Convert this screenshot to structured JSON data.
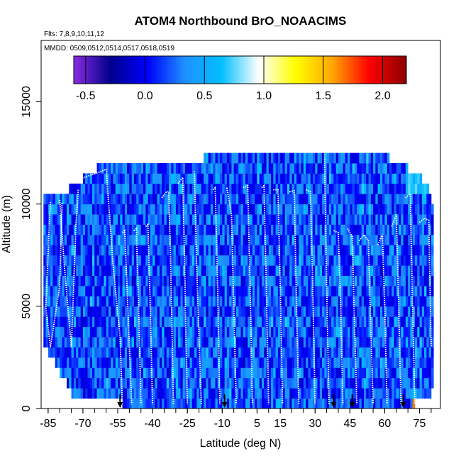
{
  "chart_data": {
    "type": "heatmap",
    "title": "ATOM4 Northbound BrO_NOAACIMS",
    "subtitle_flights": "Flts: 7,8,9,10,11,12",
    "subtitle_dates": "MMDD: 0509,0512,0514,0517,0518,0519",
    "xlabel": "Latitude (deg N)",
    "ylabel": "Altitude (m)",
    "xlim": [
      -88,
      84
    ],
    "ylim": [
      0,
      18000
    ],
    "x_ticks": [
      -85,
      -70,
      -55,
      -40,
      -25,
      -10,
      5,
      15,
      30,
      45,
      60,
      75
    ],
    "y_ticks": [
      0,
      5000,
      10000,
      15000
    ],
    "colorbar": {
      "range": [
        -0.6,
        2.2
      ],
      "ticks": [
        -0.5,
        0.0,
        0.5,
        1.0,
        1.5,
        2.0
      ],
      "tick_labels": [
        "-0.5",
        "0.0",
        "0.5",
        "1.0",
        "1.5",
        "2.0"
      ],
      "colors": [
        "#8a2be2",
        "#00008b",
        "#0000ff",
        "#1e90ff",
        "#00bfff",
        "#ffffff",
        "#ffff00",
        "#ffa500",
        "#ff0000",
        "#8b0000"
      ]
    },
    "coverage_rows": [
      {
        "alt": 250,
        "lat_min": -53,
        "lat_max": 73
      },
      {
        "alt": 750,
        "lat_min": -75,
        "lat_max": 80
      },
      {
        "alt": 1250,
        "lat_min": -77,
        "lat_max": 81
      },
      {
        "alt": 1750,
        "lat_min": -80,
        "lat_max": 81
      },
      {
        "alt": 2250,
        "lat_min": -82,
        "lat_max": 81
      },
      {
        "alt": 2750,
        "lat_min": -85,
        "lat_max": 81
      },
      {
        "alt": 3250,
        "lat_min": -87,
        "lat_max": 81
      },
      {
        "alt": 3750,
        "lat_min": -87,
        "lat_max": 81
      },
      {
        "alt": 4250,
        "lat_min": -87,
        "lat_max": 81
      },
      {
        "alt": 4750,
        "lat_min": -87,
        "lat_max": 81
      },
      {
        "alt": 5250,
        "lat_min": -87,
        "lat_max": 81
      },
      {
        "alt": 5750,
        "lat_min": -87,
        "lat_max": 81
      },
      {
        "alt": 6250,
        "lat_min": -87,
        "lat_max": 81
      },
      {
        "alt": 6750,
        "lat_min": -87,
        "lat_max": 81
      },
      {
        "alt": 7250,
        "lat_min": -87,
        "lat_max": 81
      },
      {
        "alt": 7750,
        "lat_min": -87,
        "lat_max": 81
      },
      {
        "alt": 8250,
        "lat_min": -87,
        "lat_max": 81
      },
      {
        "alt": 8750,
        "lat_min": -87,
        "lat_max": 81
      },
      {
        "alt": 9250,
        "lat_min": -87,
        "lat_max": 81
      },
      {
        "alt": 9750,
        "lat_min": -87,
        "lat_max": 81
      },
      {
        "alt": 10250,
        "lat_min": -87,
        "lat_max": 80
      },
      {
        "alt": 10750,
        "lat_min": -76,
        "lat_max": 79
      },
      {
        "alt": 11250,
        "lat_min": -70,
        "lat_max": 76
      },
      {
        "alt": 11750,
        "lat_min": -64,
        "lat_max": 70
      },
      {
        "alt": 12250,
        "lat_min": -18,
        "lat_max": 62
      }
    ],
    "flight_profiles": [
      {
        "lat": [
          -84,
          -86,
          -84,
          -80,
          -79
        ],
        "alt": [
          10100,
          5000,
          3000,
          6000,
          10050
        ]
      },
      {
        "lat": [
          -80,
          -78,
          -75,
          -73,
          -72
        ],
        "alt": [
          10200,
          7000,
          3000,
          9000,
          10700
        ]
      },
      {
        "lat": [
          -72,
          -67,
          -62,
          -60
        ],
        "alt": [
          11200,
          11400,
          11600,
          11700
        ]
      },
      {
        "lat": [
          -60,
          -57,
          -54,
          -53
        ],
        "alt": [
          11700,
          7000,
          3500,
          200
        ]
      },
      {
        "lat": [
          -53,
          -52,
          -51,
          -50,
          -49
        ],
        "alt": [
          8600,
          8700,
          6000,
          3000,
          200
        ]
      },
      {
        "lat": [
          -48,
          -47,
          -46,
          -45
        ],
        "alt": [
          8700,
          8800,
          5000,
          200
        ]
      },
      {
        "lat": [
          -43,
          -42,
          -41,
          -40
        ],
        "alt": [
          8900,
          9000,
          5000,
          200
        ]
      },
      {
        "lat": [
          -36,
          -34,
          -33,
          -32,
          -31
        ],
        "alt": [
          10300,
          10600,
          10600,
          6000,
          200
        ]
      },
      {
        "lat": [
          -29,
          -27,
          -26,
          -25
        ],
        "alt": [
          11000,
          11300,
          6000,
          200
        ]
      },
      {
        "lat": [
          -22,
          -21,
          -19
        ],
        "alt": [
          11600,
          7000,
          200
        ]
      },
      {
        "lat": [
          -14,
          -13,
          -12,
          -11
        ],
        "alt": [
          10700,
          10800,
          6000,
          200
        ]
      },
      {
        "lat": [
          -8,
          -6,
          -5,
          -4
        ],
        "alt": [
          10800,
          9500,
          5000,
          200
        ]
      },
      {
        "lat": [
          -1,
          1,
          2,
          3
        ],
        "alt": [
          10800,
          10900,
          6000,
          200
        ]
      },
      {
        "lat": [
          7,
          8,
          9,
          10
        ],
        "alt": [
          10800,
          10900,
          6000,
          200
        ]
      },
      {
        "lat": [
          12,
          14,
          15,
          16
        ],
        "alt": [
          10700,
          10700,
          6000,
          200
        ]
      },
      {
        "lat": [
          19,
          21,
          22,
          23
        ],
        "alt": [
          10600,
          10650,
          5000,
          200
        ]
      },
      {
        "lat": [
          26,
          28,
          29,
          30
        ],
        "alt": [
          10700,
          10600,
          6000,
          200
        ]
      },
      {
        "lat": [
          33,
          34,
          35,
          36
        ],
        "alt": [
          12700,
          12800,
          6000,
          200
        ]
      },
      {
        "lat": [
          38,
          40,
          41,
          42
        ],
        "alt": [
          8700,
          8600,
          5000,
          200
        ]
      },
      {
        "lat": [
          44,
          46,
          47,
          48
        ],
        "alt": [
          8800,
          8400,
          4000,
          200
        ]
      },
      {
        "lat": [
          49,
          51,
          53,
          54,
          55
        ],
        "alt": [
          8200,
          8500,
          8200,
          4000,
          200
        ]
      },
      {
        "lat": [
          57,
          59,
          60,
          61
        ],
        "alt": [
          8000,
          8500,
          5000,
          200
        ]
      },
      {
        "lat": [
          63,
          65,
          66,
          67
        ],
        "alt": [
          8900,
          9500,
          5000,
          200
        ]
      },
      {
        "lat": [
          69,
          71,
          72,
          73
        ],
        "alt": [
          10300,
          10500,
          5000,
          200
        ]
      },
      {
        "lat": [
          75,
          77,
          79,
          80
        ],
        "alt": [
          9100,
          9300,
          9200,
          3000
        ]
      }
    ],
    "arrow_lats": [
      -54,
      -9,
      38,
      46,
      68
    ],
    "high_values_near_surface": {
      "lat_min": 72,
      "lat_max": 81,
      "alt_max": 500,
      "value": 1.7
    }
  }
}
